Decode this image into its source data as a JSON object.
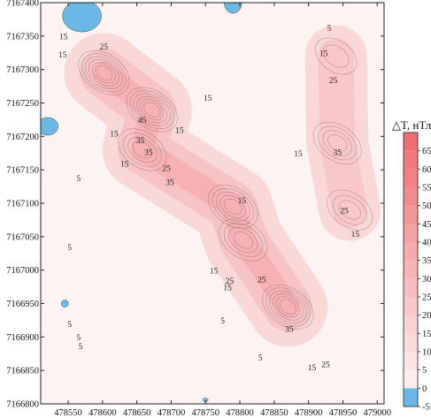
{
  "chart_data": {
    "type": "heatmap",
    "title": "",
    "xlabel": "",
    "ylabel": "",
    "xlim": [
      478510,
      479010
    ],
    "ylim": [
      7166800,
      7167400
    ],
    "x_ticks": [
      "478550",
      "478600",
      "478650",
      "478700",
      "478750",
      "478800",
      "478850",
      "478900",
      "478950",
      "479000"
    ],
    "y_ticks": [
      "7167400",
      "7167350",
      "7167300",
      "7167250",
      "7167200",
      "7167150",
      "7167100",
      "7167050",
      "7167000",
      "7166950",
      "7166900",
      "7166850",
      "7166800"
    ],
    "colorbar": {
      "title": "△T, нТл",
      "levels": [
        -5,
        0,
        5,
        10,
        15,
        20,
        25,
        30,
        35,
        40,
        45,
        50,
        55,
        60,
        65
      ],
      "labels": [
        "-5",
        "0",
        "5",
        "10",
        "15",
        "20",
        "25",
        "30",
        "35",
        "40",
        "45",
        "50",
        "55",
        "60",
        "65"
      ],
      "max": 70,
      "negative_color": "#6bb8e6",
      "low_color": "#fdf3f2",
      "high_color": "#ef6a6e"
    },
    "anomalies": [
      {
        "x": 478602,
        "y": 7167295,
        "peak": 62
      },
      {
        "x": 478672,
        "y": 7167240,
        "peak": 55
      },
      {
        "x": 478658,
        "y": 7167180,
        "peak": 35
      },
      {
        "x": 478790,
        "y": 7167095,
        "peak": 50
      },
      {
        "x": 478805,
        "y": 7167045,
        "peak": 40
      },
      {
        "x": 478870,
        "y": 7166945,
        "peak": 55
      },
      {
        "x": 478942,
        "y": 7167190,
        "peak": 40
      },
      {
        "x": 478960,
        "y": 7167090,
        "peak": 28
      },
      {
        "x": 478940,
        "y": 7167320,
        "peak": 10
      }
    ],
    "negative_areas": [
      {
        "x": 478570,
        "y": 7167380
      },
      {
        "x": 478520,
        "y": 7167215
      },
      {
        "x": 478790,
        "y": 7167400
      },
      {
        "x": 478545,
        "y": 7166950
      },
      {
        "x": 478750,
        "y": 7166806
      }
    ],
    "contour_labels": [
      {
        "text": "15",
        "x": 478543,
        "y": 7167345
      },
      {
        "text": "25",
        "x": 478602,
        "y": 7167330
      },
      {
        "text": "15",
        "x": 478542,
        "y": 7167318
      },
      {
        "text": "45",
        "x": 478658,
        "y": 7167220
      },
      {
        "text": "35",
        "x": 478655,
        "y": 7167190
      },
      {
        "text": "15",
        "x": 478617,
        "y": 7167200
      },
      {
        "text": "15",
        "x": 478712,
        "y": 7167205
      },
      {
        "text": "15",
        "x": 478753,
        "y": 7167253
      },
      {
        "text": "35",
        "x": 478667,
        "y": 7167172
      },
      {
        "text": "25",
        "x": 478693,
        "y": 7167148
      },
      {
        "text": "35",
        "x": 478698,
        "y": 7167127
      },
      {
        "text": "15",
        "x": 478632,
        "y": 7167155
      },
      {
        "text": "5",
        "x": 478565,
        "y": 7167133
      },
      {
        "text": "15",
        "x": 478803,
        "y": 7167100
      },
      {
        "text": "5",
        "x": 478552,
        "y": 7167030
      },
      {
        "text": "5",
        "x": 478552,
        "y": 7166915
      },
      {
        "text": "5",
        "x": 478568,
        "y": 7166882
      },
      {
        "text": "5",
        "x": 478565,
        "y": 7166895
      },
      {
        "text": "15",
        "x": 478762,
        "y": 7166995
      },
      {
        "text": "25",
        "x": 478785,
        "y": 7166980
      },
      {
        "text": "15",
        "x": 478782,
        "y": 7166970
      },
      {
        "text": "25",
        "x": 478832,
        "y": 7166982
      },
      {
        "text": "5",
        "x": 478775,
        "y": 7166920
      },
      {
        "text": "35",
        "x": 478872,
        "y": 7166908
      },
      {
        "text": "15",
        "x": 478905,
        "y": 7166850
      },
      {
        "text": "25",
        "x": 478925,
        "y": 7166855
      },
      {
        "text": "5",
        "x": 478830,
        "y": 7166865
      },
      {
        "text": "15",
        "x": 478885,
        "y": 7167170
      },
      {
        "text": "35",
        "x": 478942,
        "y": 7167172
      },
      {
        "text": "25",
        "x": 478936,
        "y": 7167280
      },
      {
        "text": "5",
        "x": 478930,
        "y": 7167358
      },
      {
        "text": "15",
        "x": 478922,
        "y": 7167320
      },
      {
        "text": "25",
        "x": 478952,
        "y": 7167085
      },
      {
        "text": "15",
        "x": 478968,
        "y": 7167050
      }
    ]
  }
}
